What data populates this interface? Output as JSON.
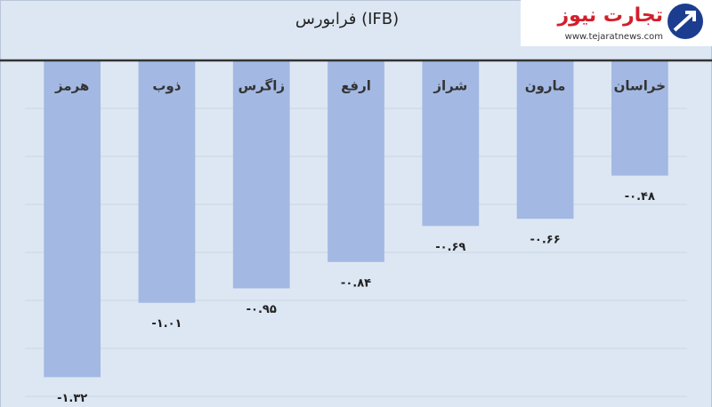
{
  "chart_data": {
    "type": "bar",
    "title": "فرابورس (IFB)",
    "categories": [
      "هرمز",
      "ذوب",
      "زاگرس",
      "ارفع",
      "شراز",
      "مارون",
      "خراسان"
    ],
    "values": [
      -1.32,
      -1.01,
      -0.95,
      -0.84,
      -0.69,
      -0.66,
      -0.48
    ],
    "value_labels": [
      "-۱.۳۲",
      "-۱.۰۱",
      "-۰.۹۵",
      "-۰.۸۴",
      "-۰.۶۹",
      "-۰.۶۶",
      "-۰.۴۸"
    ],
    "color": "#a3b9e3",
    "ylim": [
      -1.4,
      0
    ],
    "yticks": [
      -1.4,
      -1.2,
      -1,
      -0.8,
      -0.6,
      -0.4,
      -0.2,
      0
    ],
    "grid": true
  },
  "logo": {
    "name": "تجارت نیوز",
    "url": "www.tejaratnews.com"
  }
}
